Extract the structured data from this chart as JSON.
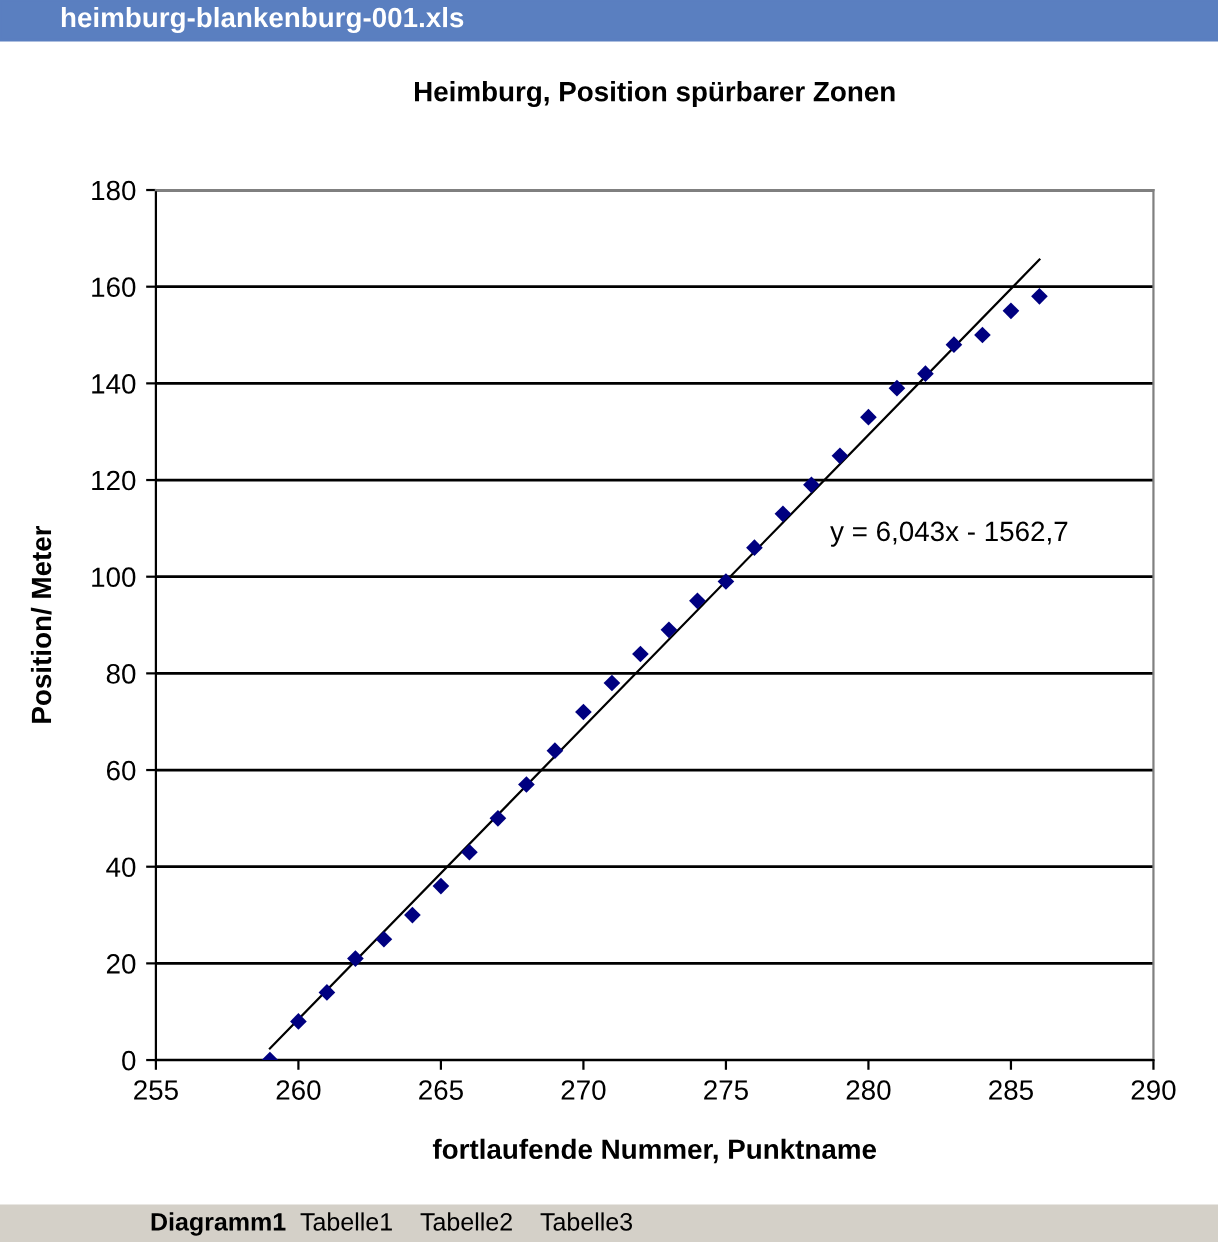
{
  "chart_data": {
    "type": "scatter",
    "title": "Heimburg, Position spürbarer Zonen",
    "xlabel": "fortlaufende Nummer, Punktname",
    "ylabel": "Position/ Meter",
    "x": [
      259,
      260,
      261,
      262,
      263,
      264,
      265,
      266,
      267,
      268,
      269,
      270,
      271,
      272,
      273,
      274,
      275,
      276,
      277,
      278,
      279,
      280,
      281,
      282,
      283,
      284,
      285,
      286
    ],
    "series": [
      {
        "color": "#000080",
        "marker": "diamond",
        "values": [
          0,
          8,
          14,
          21,
          25,
          30,
          36,
          43,
          50,
          57,
          64,
          72,
          78,
          84,
          89,
          95,
          99,
          106,
          113,
          119,
          125,
          133,
          139,
          142,
          148,
          150,
          155,
          158
        ]
      },
      {
        "type": "line",
        "color": "#000000",
        "marker": "none",
        "x": [
          259,
          286
        ],
        "values": [
          2.4,
          165.6
        ]
      }
    ],
    "annotations": [
      "y = 6,043x - 1562,7",
      "heimburg-blankenburg-001.xls",
      "Diagramm1",
      "Tabelle1",
      "Tabelle2",
      "Tabelle3"
    ],
    "xlim": [
      255,
      290
    ],
    "xticks": [
      255,
      260,
      265,
      270,
      275,
      280,
      285,
      290
    ],
    "ylim": [
      0,
      180
    ],
    "yticks": [
      0,
      20,
      40,
      60,
      80,
      100,
      120,
      140,
      160,
      180
    ],
    "grid": "y",
    "legend": false
  }
}
